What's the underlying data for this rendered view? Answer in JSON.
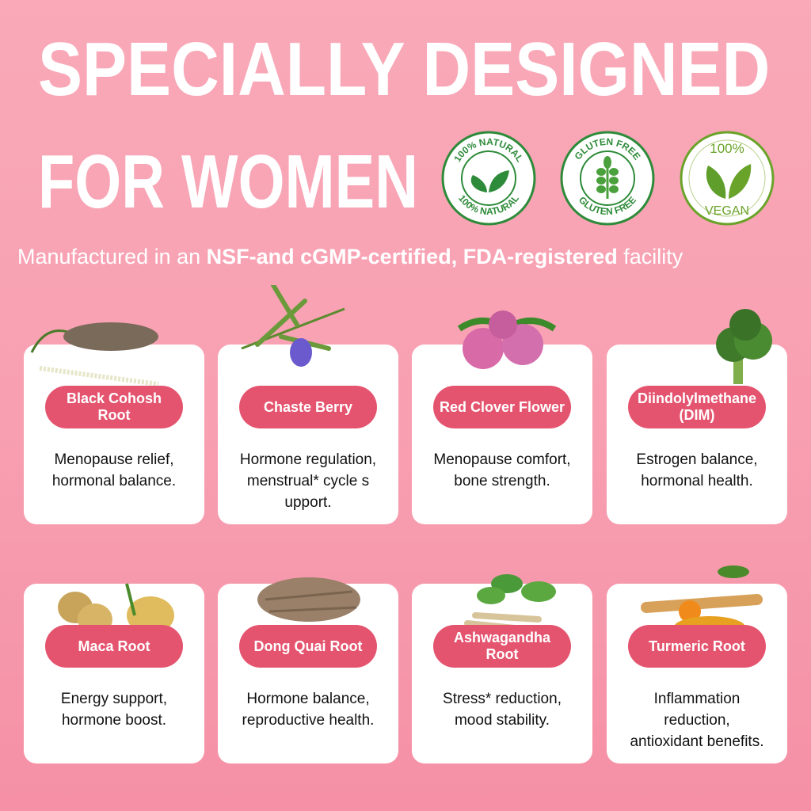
{
  "header": {
    "title_line1": "SPECIALLY DESIGNED",
    "title_line2": "FOR WOMEN",
    "subtitle_prefix": "Manufactured in an ",
    "subtitle_bold1": "NSF-and cGMP-certified, FDA-registered",
    "subtitle_suffix": " facility"
  },
  "badges": [
    {
      "label_top": "100% NATURAL",
      "label_bottom": "100% NATURAL",
      "icon": "leaf-icon",
      "color": "#2e8b3a"
    },
    {
      "label_top": "GLUTEN FREE",
      "label_bottom": "GLUTEN FREE",
      "icon": "wheat-icon",
      "color": "#2e8b3a"
    },
    {
      "label_top": "100%",
      "label_bottom": "VEGAN",
      "icon": "leaf-icon",
      "color": "#6aa329"
    }
  ],
  "colors": {
    "pill": "#e4546f",
    "card": "#ffffff",
    "background": "#f8a0b2"
  },
  "ingredients": [
    {
      "name": "Black Cohosh Root",
      "desc": "Menopause relief, hormonal balance."
    },
    {
      "name": "Chaste Berry",
      "desc": "Hormone regulation, menstrual* cycle support."
    },
    {
      "name": "Red Clover Flower",
      "desc": "Menopause comfort, bone strength."
    },
    {
      "name": "Diindolylmethane (DIM)",
      "desc": "Estrogen balance, hormonal health."
    },
    {
      "name": "Maca Root",
      "desc": "Energy support, hormone boost."
    },
    {
      "name": "Dong Quai Root",
      "desc": "Hormone balance, reproductive health."
    },
    {
      "name": "Ashwagandha Root",
      "desc": "Stress* reduction, mood stability."
    },
    {
      "name": "Turmeric Root",
      "desc": "Inflammation reduction, antioxidant benefits."
    }
  ]
}
